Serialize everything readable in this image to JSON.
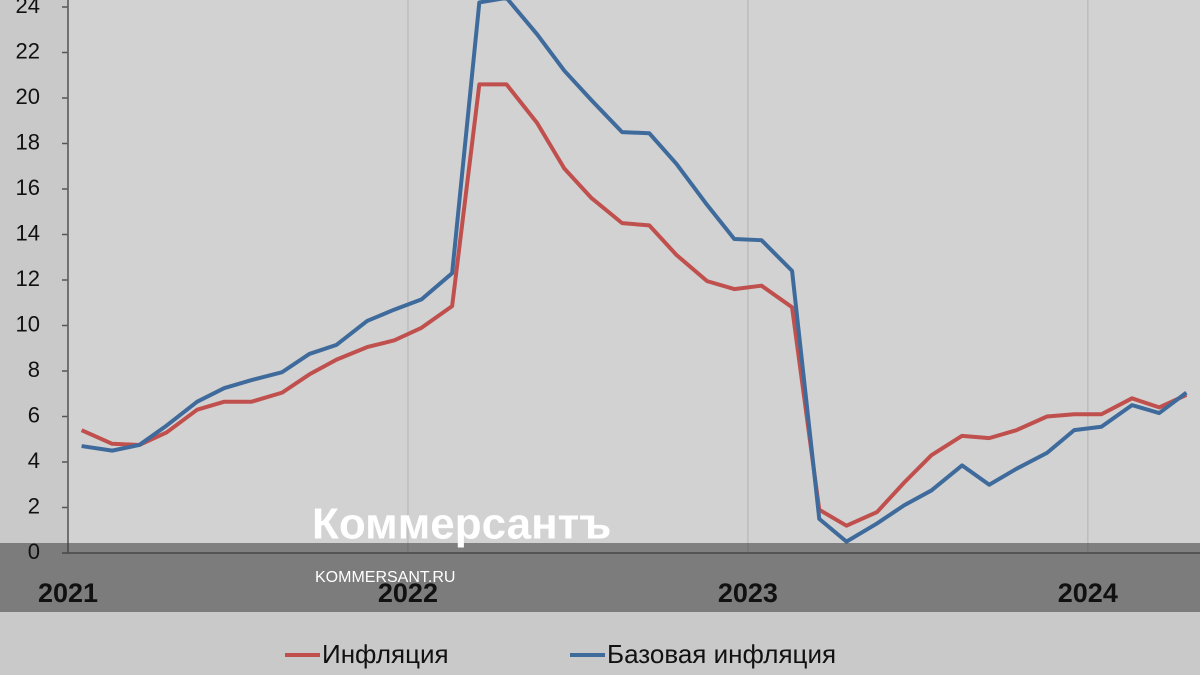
{
  "chart_data": {
    "type": "line",
    "x": [
      2021.04,
      2021.13,
      2021.21,
      2021.29,
      2021.38,
      2021.46,
      2021.54,
      2021.63,
      2021.71,
      2021.79,
      2021.88,
      2021.96,
      2022.04,
      2022.13,
      2022.21,
      2022.29,
      2022.38,
      2022.46,
      2022.54,
      2022.63,
      2022.71,
      2022.79,
      2022.88,
      2022.96,
      2023.04,
      2023.13,
      2023.21,
      2023.29,
      2023.38,
      2023.46,
      2023.54,
      2023.63,
      2023.71,
      2023.79,
      2023.88,
      2023.96,
      2024.04,
      2024.13,
      2024.21,
      2024.29
    ],
    "series": [
      {
        "name": "Инфляция",
        "color": "#c0504d",
        "values": [
          5.4,
          4.8,
          4.75,
          5.3,
          6.3,
          6.65,
          6.65,
          7.05,
          7.85,
          8.5,
          9.05,
          9.35,
          9.9,
          10.85,
          20.6,
          20.6,
          18.9,
          16.9,
          15.6,
          14.5,
          14.4,
          13.1,
          11.95,
          11.6,
          11.75,
          10.8,
          1.9,
          1.2,
          1.8,
          3.1,
          4.3,
          5.15,
          5.05,
          5.4,
          6.0,
          6.1,
          6.1,
          6.8,
          6.4,
          6.95
        ]
      },
      {
        "name": "Базовая инфляция",
        "color": "#3f6b9c",
        "values": [
          4.7,
          4.5,
          4.75,
          5.6,
          6.65,
          7.25,
          7.6,
          7.95,
          8.75,
          9.15,
          10.2,
          10.7,
          11.15,
          12.3,
          24.2,
          24.4,
          22.8,
          21.2,
          19.9,
          18.5,
          18.45,
          17.1,
          15.3,
          13.8,
          13.75,
          12.4,
          1.5,
          0.5,
          1.3,
          2.1,
          2.75,
          3.85,
          3.0,
          3.7,
          4.4,
          5.4,
          5.55,
          6.5,
          6.15,
          7.05
        ]
      }
    ],
    "xlim": [
      2021,
      2024.33
    ],
    "xticks": [
      2021,
      2022,
      2023,
      2024
    ],
    "ylim": [
      0,
      24
    ],
    "yticks": [
      0,
      2,
      4,
      6,
      8,
      10,
      12,
      14,
      16,
      18,
      20,
      22,
      24
    ],
    "grid": true,
    "watermark": {
      "logo": "Коммерсантъ",
      "site": "KOMMERSANT.RU"
    }
  }
}
